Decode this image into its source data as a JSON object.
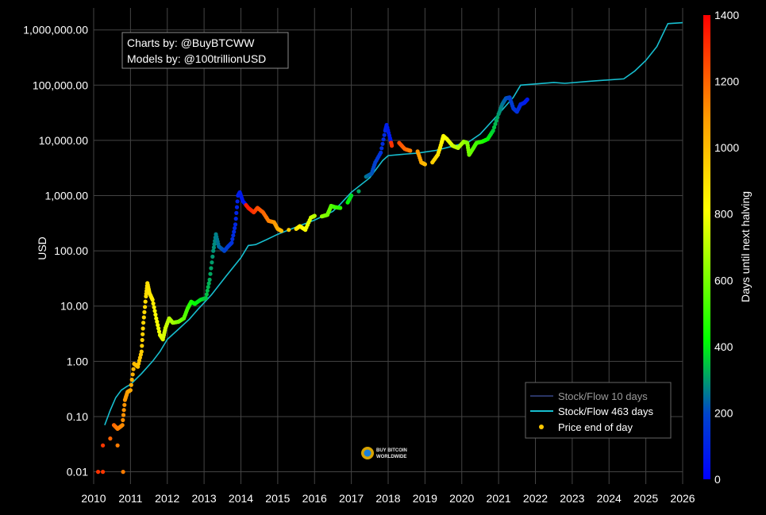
{
  "chart_data": {
    "type": "scatter",
    "title": "",
    "ylabel": "USD",
    "xlabel": "",
    "yscale": "log",
    "ylim": [
      0.006,
      2500000
    ],
    "xlim": [
      2010,
      2026
    ],
    "grid": true,
    "x_ticks": [
      "2010",
      "2011",
      "2012",
      "2013",
      "2014",
      "2015",
      "2016",
      "2017",
      "2018",
      "2019",
      "2020",
      "2021",
      "2022",
      "2023",
      "2024",
      "2025",
      "2026"
    ],
    "y_ticks": [
      {
        "value": 0.01,
        "label": "0.01"
      },
      {
        "value": 0.1,
        "label": "0.10"
      },
      {
        "value": 1,
        "label": "1.00"
      },
      {
        "value": 10,
        "label": "10.00"
      },
      {
        "value": 100,
        "label": "100.00"
      },
      {
        "value": 1000,
        "label": "1,000.00"
      },
      {
        "value": 10000,
        "label": "10,000.00"
      },
      {
        "value": 100000,
        "label": "100,000.00"
      },
      {
        "value": 1000000,
        "label": "1,000,000.00"
      }
    ],
    "annotations": [
      "Charts by: @BuyBTCWW",
      "Models by: @100trillionUSD"
    ],
    "watermark": [
      "BUY BITCOIN",
      "WORLDWIDE"
    ],
    "legend": {
      "placement": "bottom-right",
      "entries": [
        {
          "name": "Stock/Flow 10 days",
          "color": "#2a3566",
          "kind": "line"
        },
        {
          "name": "Stock/Flow 463 days",
          "color": "#17becf",
          "kind": "line"
        },
        {
          "name": "Price end of day",
          "color": "#ffc800",
          "kind": "marker"
        }
      ]
    },
    "colorbar": {
      "title": "Days until next halving",
      "min": 0,
      "max": 1400,
      "ticks": [
        "0",
        "200",
        "400",
        "600",
        "800",
        "1000",
        "1200",
        "1400"
      ],
      "colors": [
        "#0000ff",
        "#00ff00",
        "#ffff00",
        "#ff0000"
      ]
    },
    "series": [
      {
        "name": "Stock/Flow 463 days",
        "color": "#17becf",
        "points": [
          [
            2010.3,
            0.07
          ],
          [
            2010.45,
            0.13
          ],
          [
            2010.6,
            0.22
          ],
          [
            2010.75,
            0.3
          ],
          [
            2010.9,
            0.35
          ],
          [
            2011.0,
            0.38
          ],
          [
            2011.3,
            0.6
          ],
          [
            2011.6,
            1.0
          ],
          [
            2011.8,
            1.5
          ],
          [
            2012.0,
            2.5
          ],
          [
            2012.3,
            3.8
          ],
          [
            2012.6,
            5.8
          ],
          [
            2012.85,
            9.0
          ],
          [
            2013.2,
            16
          ],
          [
            2013.6,
            35
          ],
          [
            2014.0,
            75
          ],
          [
            2014.2,
            125
          ],
          [
            2014.4,
            130
          ],
          [
            2014.7,
            160
          ],
          [
            2015.0,
            200
          ],
          [
            2015.5,
            270
          ],
          [
            2016.0,
            360
          ],
          [
            2016.5,
            520
          ],
          [
            2016.7,
            700
          ],
          [
            2017.0,
            1150
          ],
          [
            2017.5,
            2100
          ],
          [
            2017.85,
            4300
          ],
          [
            2018.0,
            5300
          ],
          [
            2018.4,
            5600
          ],
          [
            2018.8,
            5900
          ],
          [
            2019.3,
            6600
          ],
          [
            2019.8,
            8000
          ],
          [
            2020.2,
            9500
          ],
          [
            2020.5,
            13000
          ],
          [
            2021.0,
            30000
          ],
          [
            2021.4,
            60000
          ],
          [
            2021.6,
            100000
          ],
          [
            2022.0,
            105000
          ],
          [
            2022.5,
            112000
          ],
          [
            2022.8,
            108000
          ],
          [
            2023.5,
            118000
          ],
          [
            2024.4,
            130000
          ],
          [
            2024.7,
            180000
          ],
          [
            2025.0,
            280000
          ],
          [
            2025.3,
            500000
          ],
          [
            2025.6,
            1300000
          ],
          [
            2026.0,
            1350000
          ]
        ]
      },
      {
        "name": "Price end of day",
        "color_by": "days until next halving",
        "points": [
          [
            2010.12,
            0.01,
            1300
          ],
          [
            2010.25,
            0.01,
            1290
          ],
          [
            2010.8,
            0.01,
            1150
          ],
          [
            2010.25,
            0.03,
            1290
          ],
          [
            2010.45,
            0.04,
            1200
          ],
          [
            2010.65,
            0.03,
            1150
          ],
          [
            2010.55,
            0.07,
            1200
          ],
          [
            2010.65,
            0.06,
            1150
          ],
          [
            2010.78,
            0.07,
            1120
          ],
          [
            2010.85,
            0.2,
            1100
          ],
          [
            2010.92,
            0.28,
            1080
          ],
          [
            2011.0,
            0.3,
            1050
          ],
          [
            2011.1,
            0.9,
            1000
          ],
          [
            2011.2,
            0.8,
            980
          ],
          [
            2011.3,
            1.5,
            950
          ],
          [
            2011.35,
            5,
            930
          ],
          [
            2011.42,
            15,
            910
          ],
          [
            2011.46,
            26,
            900
          ],
          [
            2011.52,
            17,
            880
          ],
          [
            2011.6,
            13,
            860
          ],
          [
            2011.7,
            6,
            820
          ],
          [
            2011.8,
            3,
            780
          ],
          [
            2011.88,
            2.5,
            760
          ],
          [
            2011.95,
            4,
            740
          ],
          [
            2012.05,
            6,
            700
          ],
          [
            2012.15,
            5,
            680
          ],
          [
            2012.3,
            5.2,
            620
          ],
          [
            2012.45,
            6,
            560
          ],
          [
            2012.55,
            9,
            520
          ],
          [
            2012.65,
            12,
            460
          ],
          [
            2012.75,
            11,
            420
          ],
          [
            2012.9,
            13,
            390
          ],
          [
            2013.05,
            14,
            350
          ],
          [
            2013.15,
            30,
            320
          ],
          [
            2013.25,
            100,
            290
          ],
          [
            2013.32,
            200,
            270
          ],
          [
            2013.4,
            120,
            250
          ],
          [
            2013.55,
            100,
            200
          ],
          [
            2013.65,
            120,
            170
          ],
          [
            2013.75,
            140,
            140
          ],
          [
            2013.85,
            300,
            110
          ],
          [
            2013.92,
            1000,
            90
          ],
          [
            2013.97,
            1150,
            80
          ],
          [
            2014.05,
            800,
            60
          ],
          [
            2014.2,
            600,
            1350
          ],
          [
            2014.35,
            500,
            1300
          ],
          [
            2014.45,
            600,
            1250
          ],
          [
            2014.6,
            500,
            1200
          ],
          [
            2014.75,
            350,
            1150
          ],
          [
            2014.9,
            330,
            1100
          ],
          [
            2015.0,
            250,
            1050
          ],
          [
            2015.1,
            230,
            1000
          ],
          [
            2015.3,
            240,
            950
          ],
          [
            2015.5,
            250,
            900
          ],
          [
            2015.6,
            280,
            850
          ],
          [
            2015.75,
            240,
            800
          ],
          [
            2015.9,
            400,
            750
          ],
          [
            2016.0,
            430,
            700
          ],
          [
            2016.2,
            420,
            650
          ],
          [
            2016.35,
            450,
            600
          ],
          [
            2016.45,
            650,
            560
          ],
          [
            2016.55,
            620,
            520
          ],
          [
            2016.7,
            600,
            480
          ],
          [
            2016.9,
            750,
            420
          ],
          [
            2017.0,
            1000,
            380
          ],
          [
            2017.2,
            1200,
            320
          ],
          [
            2017.4,
            2200,
            260
          ],
          [
            2017.55,
            2500,
            220
          ],
          [
            2017.65,
            4000,
            180
          ],
          [
            2017.8,
            6000,
            140
          ],
          [
            2017.92,
            15000,
            110
          ],
          [
            2017.96,
            19000,
            90
          ],
          [
            2018.05,
            11000,
            70
          ],
          [
            2018.1,
            8000,
            1300
          ],
          [
            2018.3,
            9000,
            1250
          ],
          [
            2018.45,
            7000,
            1200
          ],
          [
            2018.6,
            6500,
            1150
          ],
          [
            2018.8,
            6300,
            1100
          ],
          [
            2018.9,
            4000,
            1050
          ],
          [
            2019.0,
            3700,
            1000
          ],
          [
            2019.2,
            4000,
            950
          ],
          [
            2019.35,
            5500,
            900
          ],
          [
            2019.45,
            9000,
            850
          ],
          [
            2019.5,
            12000,
            820
          ],
          [
            2019.6,
            10500,
            800
          ],
          [
            2019.75,
            8000,
            750
          ],
          [
            2019.9,
            7300,
            700
          ],
          [
            2020.05,
            9500,
            660
          ],
          [
            2020.15,
            9000,
            620
          ],
          [
            2020.2,
            5500,
            600
          ],
          [
            2020.3,
            7000,
            560
          ],
          [
            2020.4,
            9000,
            520
          ],
          [
            2020.55,
            9500,
            480
          ],
          [
            2020.7,
            10500,
            420
          ],
          [
            2020.85,
            15000,
            360
          ],
          [
            2021.0,
            30000,
            300
          ],
          [
            2021.1,
            45000,
            260
          ],
          [
            2021.2,
            58000,
            220
          ],
          [
            2021.3,
            60000,
            190
          ],
          [
            2021.4,
            38000,
            160
          ],
          [
            2021.5,
            33000,
            140
          ],
          [
            2021.6,
            45000,
            110
          ],
          [
            2021.7,
            48000,
            90
          ],
          [
            2021.78,
            55000,
            70
          ]
        ]
      }
    ]
  }
}
